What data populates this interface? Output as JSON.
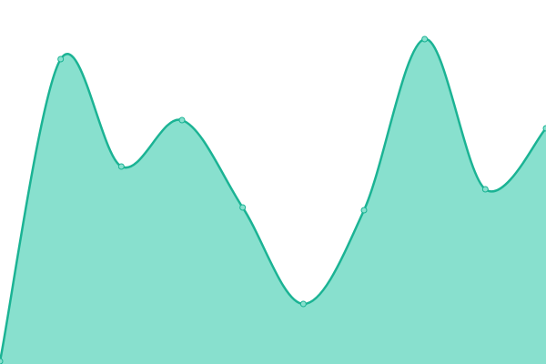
{
  "chart_data": {
    "type": "area",
    "values": [
      3,
      335,
      217,
      268,
      172,
      66,
      169,
      357,
      192,
      259
    ],
    "ylim": [
      0,
      400
    ],
    "color": "#1bb394",
    "fill": "#88e0ce"
  }
}
